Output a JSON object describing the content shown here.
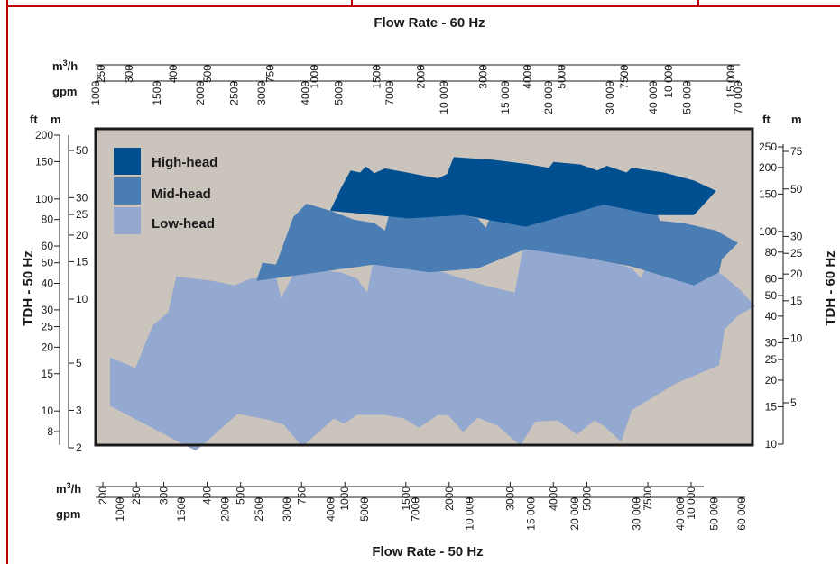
{
  "chart_data": {
    "type": "area",
    "title_top": "Flow Rate - 60 Hz",
    "title_bottom": "Flow Rate - 50 Hz",
    "title_left": "TDH - 50 Hz",
    "title_right": "TDH - 60 Hz",
    "scale": "log-log",
    "background_color": "#cbc4bd",
    "frame_color": "#c00000",
    "legend": {
      "placement": "top-left",
      "entries": [
        {
          "label": "High-head",
          "color": "#004f91"
        },
        {
          "label": "Mid-head",
          "color": "#4a7db3"
        },
        {
          "label": "Low-head",
          "color": "#94a9d0"
        }
      ]
    },
    "top_axes": {
      "m3h": {
        "unit": "m³/h",
        "unit_base": "m",
        "unit_sup": "3",
        "unit_tail": "/h",
        "ticks": [
          250,
          300,
          400,
          500,
          750,
          1000,
          1500,
          2000,
          3000,
          4000,
          5000,
          7500,
          10000,
          15000
        ],
        "labels": [
          "250",
          "300",
          "400",
          "500",
          "750",
          "1000",
          "1500",
          "2000",
          "3000",
          "4000",
          "5000",
          "7500",
          "10 000",
          "15 000"
        ]
      },
      "gpm": {
        "unit": "gpm",
        "ticks": [
          1000,
          1500,
          2000,
          2500,
          3000,
          4000,
          5000,
          7000,
          10000,
          15000,
          20000,
          30000,
          40000,
          50000,
          70000
        ],
        "labels": [
          "1000",
          "1500",
          "2000",
          "2500",
          "3000",
          "4000",
          "5000",
          "7000",
          "10 000",
          "15 000",
          "20 000",
          "30 000",
          "40 000",
          "50 000",
          "70 000"
        ]
      }
    },
    "bottom_axes": {
      "m3h": {
        "unit": "m³/h",
        "unit_base": "m",
        "unit_sup": "3",
        "unit_tail": "/h",
        "ticks": [
          200,
          250,
          300,
          400,
          500,
          750,
          1000,
          1500,
          2000,
          3000,
          4000,
          5000,
          7500,
          10000
        ],
        "labels": [
          "200",
          "250",
          "300",
          "400",
          "500",
          "750",
          "1000",
          "1500",
          "2000",
          "3000",
          "4000",
          "5000",
          "7500",
          "10 000"
        ]
      },
      "gpm": {
        "unit": "gpm",
        "ticks": [
          1000,
          1500,
          2000,
          2500,
          3000,
          4000,
          5000,
          7000,
          10000,
          15000,
          20000,
          30000,
          40000,
          50000,
          60000
        ],
        "labels": [
          "1000",
          "1500",
          "2000",
          "2500",
          "3000",
          "4000",
          "5000",
          "7000",
          "10 000",
          "15 000",
          "20 000",
          "30 000",
          "40 000",
          "50 000",
          "60 000"
        ]
      }
    },
    "left_axes": {
      "ft": {
        "unit": "ft",
        "ticks": [
          8,
          10,
          15,
          20,
          25,
          30,
          40,
          50,
          60,
          80,
          100,
          150,
          200
        ],
        "labels": [
          "8",
          "10",
          "15",
          "20",
          "25",
          "30",
          "40",
          "50",
          "60",
          "80",
          "100",
          "150",
          "200"
        ]
      },
      "m": {
        "unit": "m",
        "ticks": [
          2,
          3,
          5,
          10,
          15,
          20,
          25,
          30,
          50
        ],
        "labels": [
          "2",
          "3",
          "5",
          "10",
          "15",
          "20",
          "25",
          "30",
          "50"
        ]
      }
    },
    "right_axes": {
      "ft": {
        "unit": "ft",
        "ticks": [
          10,
          15,
          20,
          25,
          30,
          40,
          50,
          60,
          80,
          100,
          150,
          200,
          250
        ],
        "labels": [
          "10",
          "15",
          "20",
          "25",
          "30",
          "40",
          "50",
          "60",
          "80",
          "100",
          "150",
          "200",
          "250"
        ]
      },
      "m": {
        "unit": "m",
        "ticks": [
          5,
          10,
          15,
          20,
          25,
          30,
          50,
          75
        ],
        "labels": [
          "5",
          "10",
          "15",
          "20",
          "25",
          "30",
          "50",
          "75"
        ]
      }
    },
    "series": [
      {
        "name": "Low-head",
        "color": "#94a9d0",
        "upper": [
          [
            1000,
            18.5
          ],
          [
            1180,
            16.5
          ],
          [
            1320,
            26
          ],
          [
            1460,
            30
          ],
          [
            1540,
            44
          ],
          [
            1950,
            42
          ],
          [
            2250,
            40
          ],
          [
            2500,
            43
          ],
          [
            2950,
            44
          ],
          [
            3050,
            35
          ],
          [
            3400,
            49
          ],
          [
            3900,
            47
          ],
          [
            4500,
            46
          ],
          [
            5000,
            43
          ],
          [
            5350,
            37
          ],
          [
            5600,
            56
          ],
          [
            6300,
            53
          ],
          [
            7000,
            51
          ],
          [
            8300,
            47
          ],
          [
            8800,
            46
          ],
          [
            9500,
            44
          ],
          [
            10500,
            42
          ],
          [
            11500,
            40
          ],
          [
            14000,
            37
          ],
          [
            14800,
            62
          ],
          [
            17000,
            60
          ],
          [
            21000,
            56
          ],
          [
            25000,
            53
          ],
          [
            30000,
            48
          ],
          [
            32000,
            43
          ],
          [
            34000,
            60
          ],
          [
            40000,
            56
          ],
          [
            47000,
            51
          ],
          [
            54000,
            45
          ],
          [
            61000,
            38
          ],
          [
            67000,
            32
          ]
        ],
        "lower": [
          [
            67000,
            32
          ],
          [
            60000,
            29
          ],
          [
            55000,
            25
          ],
          [
            53000,
            17
          ],
          [
            40000,
            14
          ],
          [
            30000,
            10.5
          ],
          [
            28000,
            7.5
          ],
          [
            25000,
            8.9
          ],
          [
            23500,
            9.4
          ],
          [
            21000,
            8.1
          ],
          [
            18500,
            9.4
          ],
          [
            16000,
            9.3
          ],
          [
            14500,
            7.2
          ],
          [
            12500,
            8.9
          ],
          [
            11000,
            9.7
          ],
          [
            10000,
            8.3
          ],
          [
            9100,
            9.9
          ],
          [
            8500,
            10
          ],
          [
            7500,
            8.7
          ],
          [
            6800,
            9.6
          ],
          [
            6000,
            10
          ],
          [
            5000,
            10
          ],
          [
            4600,
            9.1
          ],
          [
            4300,
            9.6
          ],
          [
            3500,
            7.1
          ],
          [
            3100,
            9
          ],
          [
            2800,
            9.5
          ],
          [
            2300,
            10.1
          ],
          [
            1750,
            6.8
          ],
          [
            1000,
            11
          ]
        ]
      },
      {
        "name": "Mid-head",
        "color": "#4a7db3",
        "upper": [
          [
            2600,
            42
          ],
          [
            2700,
            51
          ],
          [
            2950,
            50
          ],
          [
            3300,
            83
          ],
          [
            3600,
            96
          ],
          [
            4200,
            89
          ],
          [
            4900,
            81
          ],
          [
            5600,
            78
          ],
          [
            6000,
            72
          ],
          [
            6300,
            97
          ],
          [
            7500,
            92
          ],
          [
            8800,
            88
          ],
          [
            10000,
            85
          ],
          [
            11000,
            82
          ],
          [
            11600,
            74
          ],
          [
            12500,
            102
          ],
          [
            15000,
            100
          ],
          [
            18500,
            96
          ],
          [
            20500,
            94
          ],
          [
            22000,
            98
          ],
          [
            27000,
            95
          ],
          [
            35000,
            91
          ],
          [
            36000,
            80
          ],
          [
            42000,
            78
          ],
          [
            52000,
            72
          ],
          [
            60000,
            63
          ]
        ],
        "lower": [
          [
            60000,
            63
          ],
          [
            54000,
            53
          ],
          [
            53000,
            46
          ],
          [
            45000,
            40
          ],
          [
            30000,
            49
          ],
          [
            22000,
            54
          ],
          [
            15000,
            59
          ],
          [
            11000,
            48
          ],
          [
            8000,
            46
          ],
          [
            5600,
            50
          ],
          [
            2600,
            42
          ]
        ]
      },
      {
        "name": "High-head",
        "color": "#004f91",
        "upper": [
          [
            4200,
            89
          ],
          [
            4500,
            113
          ],
          [
            4800,
            137
          ],
          [
            5100,
            134
          ],
          [
            5300,
            143
          ],
          [
            5600,
            133
          ],
          [
            6000,
            140
          ],
          [
            7100,
            133
          ],
          [
            8000,
            128
          ],
          [
            8500,
            126
          ],
          [
            9000,
            132
          ],
          [
            9400,
            158
          ],
          [
            12000,
            154
          ],
          [
            15000,
            147
          ],
          [
            17500,
            141
          ],
          [
            18000,
            150
          ],
          [
            21500,
            146
          ],
          [
            24000,
            137
          ],
          [
            25500,
            144
          ],
          [
            29000,
            134
          ],
          [
            30000,
            141
          ],
          [
            37000,
            134
          ],
          [
            45000,
            123
          ],
          [
            52000,
            110
          ]
        ],
        "lower": [
          [
            52000,
            110
          ],
          [
            45000,
            85
          ],
          [
            35000,
            85
          ],
          [
            25000,
            95
          ],
          [
            15000,
            75
          ],
          [
            10000,
            85
          ],
          [
            7000,
            82
          ],
          [
            4200,
            89
          ]
        ]
      }
    ]
  }
}
